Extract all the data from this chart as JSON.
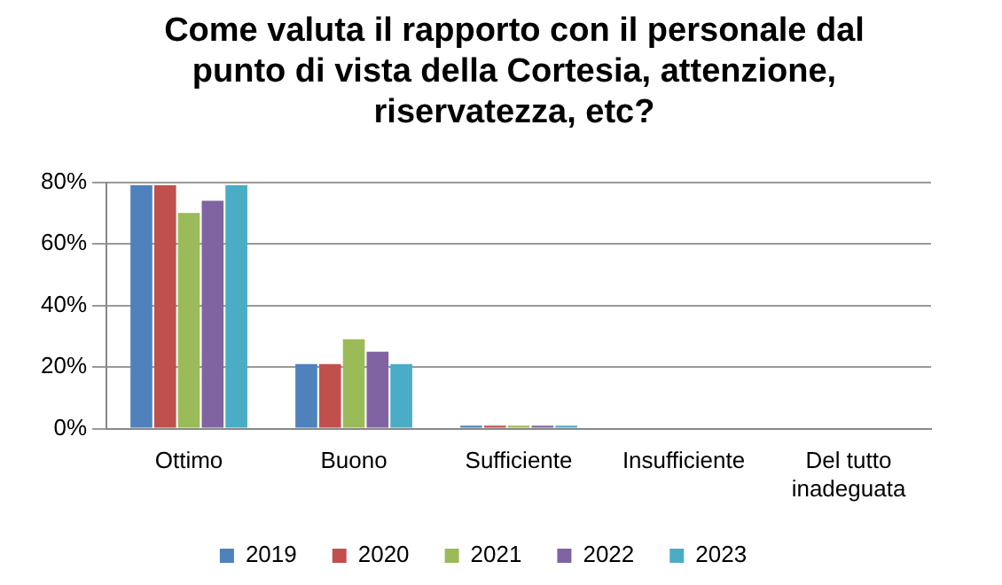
{
  "chart_data": {
    "type": "bar",
    "title": "Come valuta il rapporto con il personale dal punto di vista della Cortesia, attenzione, riservatezza, etc?",
    "categories": [
      "Ottimo",
      "Buono",
      "Sufficiente",
      "Insufficiente",
      "Del tutto inadeguata"
    ],
    "series": [
      {
        "name": "2019",
        "color": "#4f81bd",
        "values": [
          79,
          21,
          1,
          0,
          0
        ]
      },
      {
        "name": "2020",
        "color": "#c0504d",
        "values": [
          79,
          21,
          1,
          0,
          0
        ]
      },
      {
        "name": "2021",
        "color": "#9bbb59",
        "values": [
          70,
          29,
          1,
          0,
          0
        ]
      },
      {
        "name": "2022",
        "color": "#8064a2",
        "values": [
          74,
          25,
          1,
          0,
          0
        ]
      },
      {
        "name": "2023",
        "color": "#4bacc6",
        "values": [
          79,
          21,
          1,
          0,
          0
        ]
      }
    ],
    "ylim": [
      0,
      80
    ],
    "yticks": [
      {
        "value": 0,
        "label": "0%"
      },
      {
        "value": 20,
        "label": "20%"
      },
      {
        "value": 40,
        "label": "40%"
      },
      {
        "value": 60,
        "label": "60%"
      },
      {
        "value": 80,
        "label": "80%"
      }
    ],
    "grid": "y",
    "legend": "bottom"
  }
}
